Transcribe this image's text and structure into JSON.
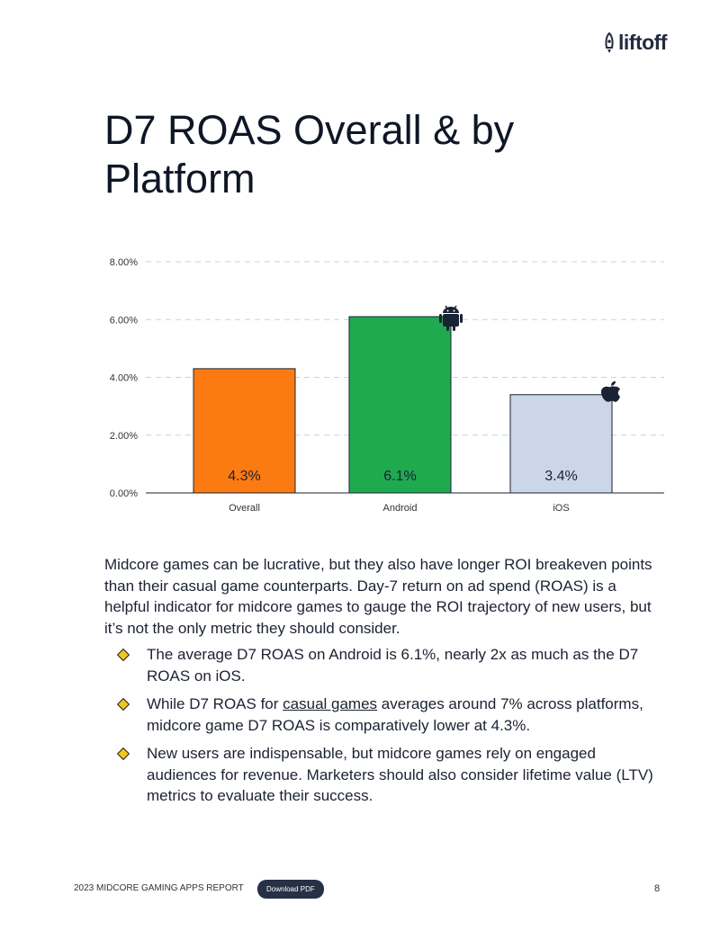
{
  "logo": "liftoff",
  "title": "D7 ROAS Overall & by Platform",
  "chart_data": {
    "type": "bar",
    "title": "D7 ROAS Overall & by Platform",
    "categories": [
      "Overall",
      "Android",
      "iOS"
    ],
    "values": [
      4.3,
      6.1,
      3.4
    ],
    "data_labels": [
      "4.3%",
      "6.1%",
      "3.4%"
    ],
    "colors": [
      "#fb7a12",
      "#1faa50",
      "#cbd6e8"
    ],
    "icons": [
      null,
      "android-icon",
      "apple-icon"
    ],
    "yticks": [
      "0.00%",
      "2.00%",
      "4.00%",
      "6.00%",
      "8.00%"
    ],
    "ylim": [
      0,
      8
    ],
    "grid": true,
    "xlabel": "",
    "ylabel": ""
  },
  "paragraph": "Midcore games can be lucrative, but they also have longer ROI breakeven points than their casual game counterparts. Day-7 return on ad spend (ROAS) is a helpful indicator for midcore games to gauge the ROI trajectory of new users, but it’s not the only metric they should consider.",
  "bullets": [
    {
      "text": "The average D7 ROAS on Android is 6.1%, nearly 2x as much as the D7 ROAS on iOS."
    },
    {
      "pre": "While D7 ROAS for ",
      "link": "casual games",
      "post": " averages around 7% across platforms, midcore game D7 ROAS is comparatively lower at 4.3%."
    },
    {
      "text": "New users are indispensable, but midcore games rely on engaged audiences for revenue. Marketers should also consider lifetime value (LTV) metrics to evaluate their success."
    }
  ],
  "footer": {
    "report": "2023 MIDCORE GAMING APPS REPORT",
    "download": "Download PDF",
    "page": "8"
  }
}
